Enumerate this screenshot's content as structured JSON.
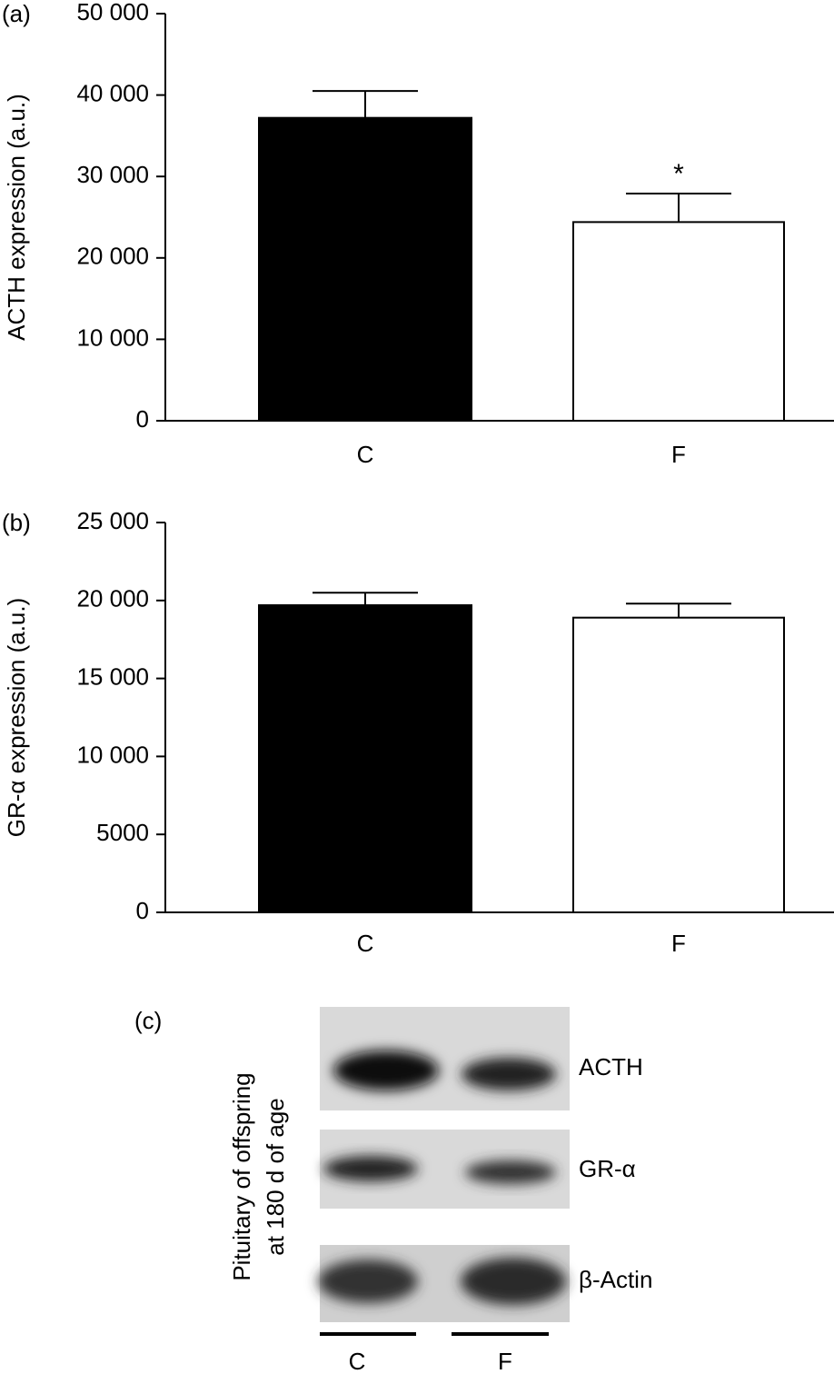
{
  "chart_data": [
    {
      "type": "bar",
      "panel_label": "(a)",
      "ylabel": "ACTH expression (a.u.)",
      "categories": [
        "C",
        "F"
      ],
      "values": [
        37200,
        24400
      ],
      "errors": [
        3300,
        3500
      ],
      "colors": [
        "#000000",
        "#ffffff"
      ],
      "annotations": [
        {
          "category": "F",
          "text": "*"
        }
      ],
      "ylim": [
        0,
        50000
      ],
      "yticks": [
        0,
        {
          "value": 10000,
          "label": "10 000"
        },
        {
          "value": 20000,
          "label": "20 000"
        },
        {
          "value": 30000,
          "label": "30 000"
        },
        {
          "value": 40000,
          "label": "40 000"
        },
        {
          "value": 50000,
          "label": "50 000"
        }
      ]
    },
    {
      "type": "bar",
      "panel_label": "(b)",
      "ylabel": "GR-α expression (a.u.)",
      "categories": [
        "C",
        "F"
      ],
      "values": [
        19700,
        18900
      ],
      "errors": [
        800,
        900
      ],
      "colors": [
        "#000000",
        "#ffffff"
      ],
      "ylim": [
        0,
        25000
      ],
      "yticks": [
        0,
        5000,
        {
          "value": 10000,
          "label": "10 000"
        },
        {
          "value": 15000,
          "label": "15 000"
        },
        {
          "value": 20000,
          "label": "20 000"
        },
        {
          "value": 25000,
          "label": "25 000"
        }
      ]
    }
  ],
  "blot": {
    "panel_label": "(c)",
    "side_label": [
      "Pituitary of offspring",
      "at 180 d of age"
    ],
    "bands": [
      "ACTH",
      "GR-α",
      "β-Actin"
    ],
    "lanes": [
      "C",
      "F"
    ]
  }
}
